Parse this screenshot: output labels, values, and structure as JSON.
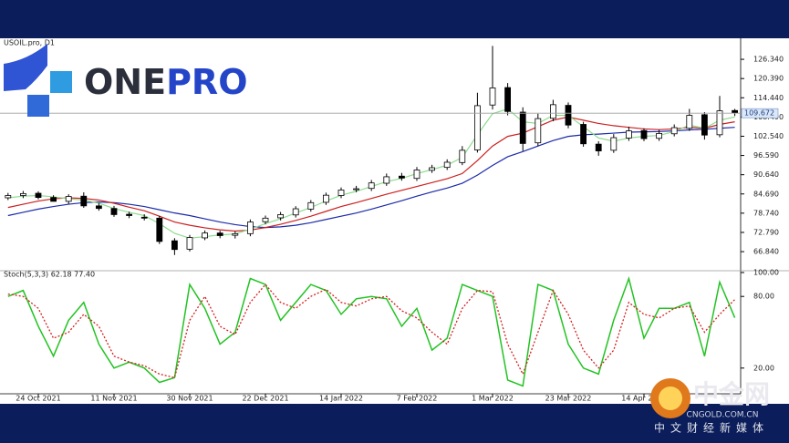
{
  "branding": {
    "logo_one": "ONE",
    "logo_pro": "PRO",
    "watermark": "中金网",
    "watermark_url": "CNGOLD.COM.CN",
    "watermark_tagline": "中文财经新媒体"
  },
  "chart_data": [
    {
      "type": "candlestick",
      "title": "USOIL.pro, D1",
      "categories": [
        null,
        null,
        "24 Oct 2021",
        null,
        null,
        null,
        null,
        "11 Nov 2021",
        null,
        null,
        null,
        null,
        "30 Nov 2021",
        null,
        null,
        null,
        null,
        "22 Dec 2021",
        null,
        null,
        null,
        null,
        "14 Jan 2022",
        null,
        null,
        null,
        null,
        "7 Feb 2022",
        null,
        null,
        null,
        null,
        "1 Mar 2022",
        null,
        null,
        null,
        null,
        "23 Mar 2022",
        null,
        null,
        null,
        null,
        "14 Apr 2022",
        null,
        null,
        null,
        null,
        null,
        null
      ],
      "open": [
        83.5,
        84.2,
        84.9,
        83.6,
        82.4,
        84.0,
        81.0,
        80.2,
        78.4,
        77.5,
        77.2,
        70.2,
        67.6,
        71.1,
        72.6,
        71.9,
        72.4,
        76.1,
        77.3,
        78.2,
        80.0,
        82.1,
        84.2,
        86.0,
        86.4,
        88.0,
        90.2,
        89.5,
        92.0,
        92.9,
        94.4,
        98.3,
        112.2,
        117.6,
        110.0,
        100.5,
        108.1,
        112.1,
        106.2,
        100.1,
        98.2,
        102.0,
        104.3,
        101.9,
        103.3,
        105.0,
        109.2,
        103.0,
        110.5
      ],
      "high": [
        85.0,
        85.6,
        85.5,
        84.3,
        84.6,
        85.2,
        81.8,
        81.0,
        79.2,
        78.4,
        77.9,
        71.0,
        72.0,
        73.4,
        73.3,
        73.1,
        76.8,
        78.0,
        79.1,
        80.9,
        82.8,
        85.1,
        86.7,
        87.2,
        89.0,
        91.0,
        91.2,
        93.0,
        93.7,
        95.4,
        99.5,
        116.0,
        130.5,
        119.0,
        111.5,
        109.5,
        113.8,
        113.0,
        107.0,
        101.0,
        103.2,
        105.5,
        105.0,
        104.5,
        106.2,
        111.0,
        110.0,
        115.0,
        111.0
      ],
      "low": [
        82.8,
        83.4,
        83.0,
        82.6,
        81.6,
        80.4,
        79.5,
        77.6,
        77.2,
        76.5,
        69.2,
        65.8,
        66.9,
        70.4,
        71.0,
        70.9,
        71.6,
        75.3,
        76.5,
        77.4,
        79.2,
        81.3,
        83.4,
        85.2,
        85.6,
        87.2,
        88.8,
        88.7,
        91.2,
        92.1,
        93.6,
        97.5,
        110.8,
        109.0,
        98.0,
        99.5,
        107.2,
        105.0,
        99.3,
        96.5,
        97.4,
        101.1,
        101.0,
        101.1,
        102.5,
        104.2,
        101.5,
        102.2,
        108.8
      ],
      "close": [
        84.2,
        84.8,
        83.6,
        82.4,
        83.9,
        81.0,
        80.2,
        78.3,
        78.0,
        77.2,
        70.0,
        67.5,
        71.2,
        72.6,
        71.8,
        72.4,
        76.0,
        77.2,
        78.3,
        80.1,
        82.0,
        84.3,
        85.9,
        86.3,
        88.1,
        90.0,
        89.6,
        92.1,
        92.8,
        94.5,
        98.2,
        112.0,
        117.5,
        110.2,
        100.3,
        108.0,
        112.3,
        106.0,
        100.2,
        98.0,
        102.1,
        104.2,
        101.8,
        103.4,
        105.2,
        109.0,
        102.9,
        110.4,
        109.7
      ],
      "up_color": "#ffffff",
      "down_color": "#000000",
      "series": [
        {
          "color": "#1a2aa8",
          "values": [
            78.0,
            79.0,
            80.0,
            80.8,
            81.5,
            82.0,
            82.2,
            82.0,
            81.5,
            80.8,
            79.8,
            78.8,
            78.0,
            77.0,
            76.0,
            75.2,
            74.6,
            74.3,
            74.5,
            75.0,
            75.8,
            76.8,
            77.8,
            78.8,
            80.0,
            81.3,
            82.6,
            84.0,
            85.3,
            86.5,
            88.0,
            90.5,
            93.5,
            96.2,
            97.8,
            99.5,
            101.2,
            102.5,
            103.0,
            103.2,
            103.5,
            103.8,
            103.9,
            104.0,
            104.2,
            104.5,
            104.7,
            105.0,
            105.3
          ]
        },
        {
          "color": "#cc1f1f",
          "values": [
            80.5,
            81.5,
            82.5,
            83.2,
            83.5,
            83.3,
            82.8,
            81.8,
            80.6,
            79.5,
            77.8,
            76.0,
            75.0,
            74.2,
            73.6,
            73.2,
            73.5,
            74.3,
            75.3,
            76.5,
            77.8,
            79.3,
            80.8,
            82.0,
            83.3,
            84.6,
            85.8,
            87.0,
            88.2,
            89.4,
            91.0,
            95.0,
            99.5,
            102.5,
            103.5,
            105.5,
            107.5,
            108.5,
            107.5,
            106.5,
            105.8,
            105.3,
            104.8,
            104.6,
            104.8,
            105.3,
            105.0,
            106.2,
            107.0
          ]
        },
        {
          "color": "#8edc8e",
          "values": [
            83.5,
            84.0,
            84.2,
            83.8,
            83.2,
            82.8,
            81.8,
            80.2,
            79.0,
            78.0,
            75.5,
            72.5,
            71.0,
            71.5,
            72.0,
            72.3,
            73.8,
            75.5,
            77.0,
            78.8,
            80.5,
            82.5,
            84.3,
            85.5,
            87.0,
            88.5,
            89.5,
            91.0,
            92.2,
            93.6,
            96.0,
            103.0,
            109.5,
            111.0,
            107.0,
            106.5,
            109.0,
            109.0,
            105.5,
            102.0,
            101.0,
            102.0,
            102.5,
            102.8,
            104.0,
            106.0,
            105.0,
            107.5,
            108.5
          ]
        }
      ],
      "ylim": [
        61.5,
        132
      ],
      "yticks": [
        {
          "value": 126.34,
          "label": "126.340"
        },
        {
          "value": 120.39,
          "label": "120.390"
        },
        {
          "value": 114.44,
          "label": "114.440"
        },
        {
          "value": 108.49,
          "label": "108.490"
        },
        {
          "value": 102.54,
          "label": "102.540"
        },
        {
          "value": 96.59,
          "label": "96.590"
        },
        {
          "value": 90.64,
          "label": "90.640"
        },
        {
          "value": 84.69,
          "label": "84.690"
        },
        {
          "value": 78.74,
          "label": "78.740"
        },
        {
          "value": 72.79,
          "label": "72.790"
        },
        {
          "value": 66.84,
          "label": "66.840"
        }
      ],
      "last_price": {
        "value": 109.672,
        "label": "109.672"
      },
      "grid": false
    },
    {
      "type": "line",
      "title": "Stoch(5,3,3) 62.18 77.40",
      "series": [
        {
          "color": "#22c322",
          "values": [
            80,
            85,
            55,
            30,
            60,
            75,
            40,
            20,
            25,
            20,
            8,
            12,
            90,
            70,
            40,
            50,
            95,
            90,
            60,
            75,
            90,
            85,
            65,
            78,
            80,
            78,
            55,
            70,
            35,
            45,
            90,
            85,
            80,
            10,
            5,
            90,
            85,
            40,
            20,
            15,
            60,
            95,
            45,
            70,
            70,
            75,
            30,
            92,
            62.18
          ]
        },
        {
          "color": "#d42020",
          "dashed": true,
          "values": [
            82,
            80,
            70,
            45,
            50,
            65,
            55,
            30,
            25,
            22,
            15,
            12,
            60,
            80,
            55,
            48,
            75,
            90,
            75,
            70,
            80,
            86,
            75,
            72,
            78,
            80,
            68,
            62,
            50,
            40,
            70,
            85,
            84,
            40,
            15,
            50,
            85,
            65,
            35,
            20,
            35,
            75,
            65,
            62,
            70,
            72,
            50,
            65,
            77.4
          ]
        }
      ],
      "ylim": [
        0,
        100
      ],
      "yticks": [
        {
          "value": 100,
          "label": "100.00"
        },
        {
          "value": 80,
          "label": "80.00"
        },
        {
          "value": 20,
          "label": "20.00"
        }
      ]
    }
  ]
}
